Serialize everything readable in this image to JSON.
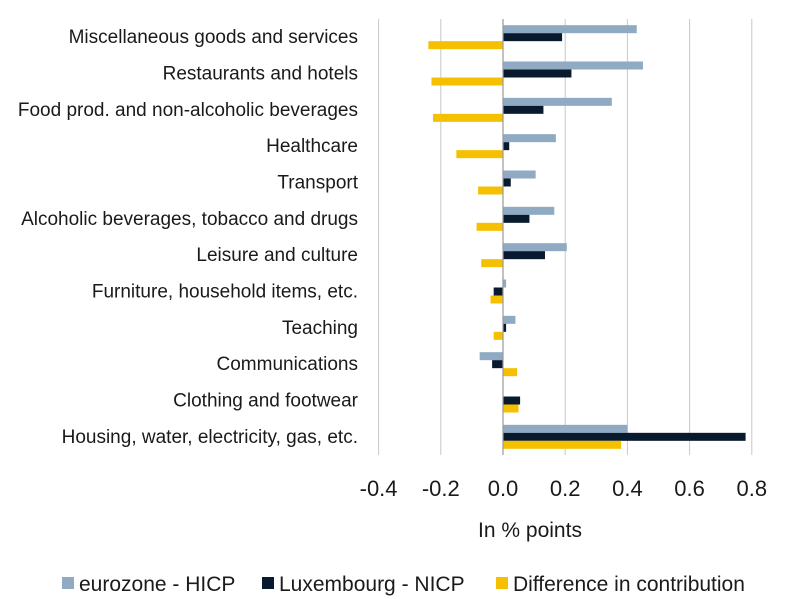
{
  "chart_data": {
    "type": "bar",
    "orientation": "horizontal",
    "title": "",
    "xlabel": "In % points",
    "ylabel": "",
    "xlim": [
      -0.4,
      0.8
    ],
    "xticks": [
      -0.4,
      -0.2,
      0.0,
      0.2,
      0.4,
      0.6,
      0.8
    ],
    "xtick_labels": [
      "-0.4",
      "-0.2",
      "0.0",
      "0.2",
      "0.4",
      "0.6",
      "0.8"
    ],
    "grid": "vertical",
    "legend_position": "bottom",
    "categories": [
      "Miscellaneous goods and services",
      "Restaurants and hotels",
      "Food prod. and non-alcoholic beverages",
      "Healthcare",
      "Transport",
      "Alcoholic beverages, tobacco and drugs",
      "Leisure and culture",
      "Furniture, household items, etc.",
      "Teaching",
      "Communications",
      "Clothing and footwear",
      "Housing, water, electricity, gas, etc."
    ],
    "series": [
      {
        "name": "eurozone - HICP",
        "color": "#8faac2",
        "values": [
          0.43,
          0.45,
          0.35,
          0.17,
          0.105,
          0.165,
          0.205,
          0.01,
          0.04,
          -0.075,
          0.0,
          0.4
        ]
      },
      {
        "name": "Luxembourg - NICP",
        "color": "#0a1a2e",
        "values": [
          0.19,
          0.22,
          0.13,
          0.02,
          0.025,
          0.085,
          0.135,
          -0.03,
          0.01,
          -0.035,
          0.055,
          0.78
        ]
      },
      {
        "name": "Difference in contribution",
        "color": "#f5c000",
        "values": [
          -0.24,
          -0.23,
          -0.225,
          -0.15,
          -0.08,
          -0.085,
          -0.07,
          -0.04,
          -0.03,
          0.045,
          0.05,
          0.38
        ]
      }
    ]
  }
}
